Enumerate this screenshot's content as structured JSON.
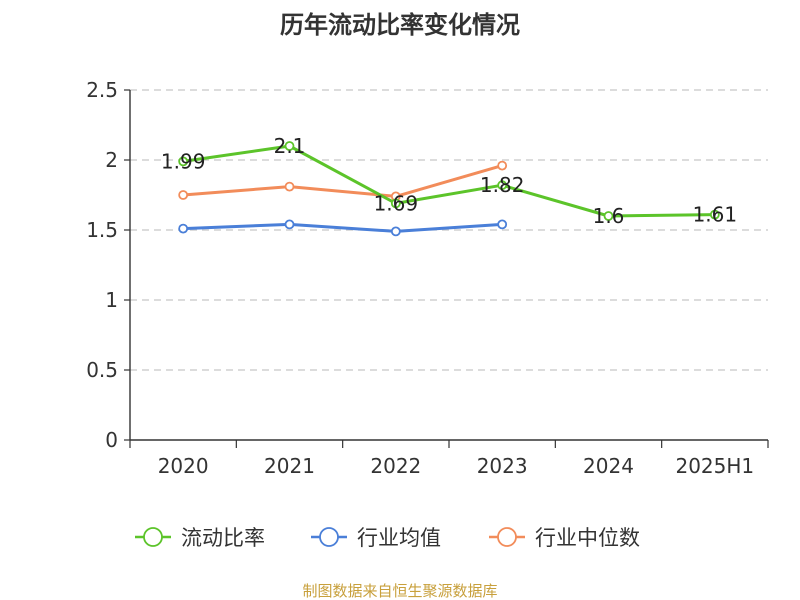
{
  "chart_data": {
    "type": "line",
    "title": "历年流动比率变化情况",
    "categories": [
      "2020",
      "2021",
      "2022",
      "2023",
      "2024",
      "2025H1"
    ],
    "ylim": [
      0,
      2.5
    ],
    "yticks": [
      "0",
      "0.5",
      "1",
      "1.5",
      "2",
      "2.5"
    ],
    "grid": true,
    "legend_position": "bottom",
    "series": [
      {
        "name": "流动比率",
        "color": "#5cc42a",
        "values": [
          1.99,
          2.1,
          1.69,
          1.82,
          1.6,
          1.61
        ],
        "labels": [
          "1.99",
          "2.1",
          "1.69",
          "1.82",
          "1.6",
          "1.61"
        ]
      },
      {
        "name": "行业均值",
        "color": "#4a7fd8",
        "values": [
          1.51,
          1.54,
          1.49,
          1.54,
          null,
          null
        ]
      },
      {
        "name": "行业中位数",
        "color": "#f28c5a",
        "values": [
          1.75,
          1.81,
          1.74,
          1.96,
          null,
          null
        ]
      }
    ]
  },
  "source_text": "制图数据来自恒生聚源数据库"
}
